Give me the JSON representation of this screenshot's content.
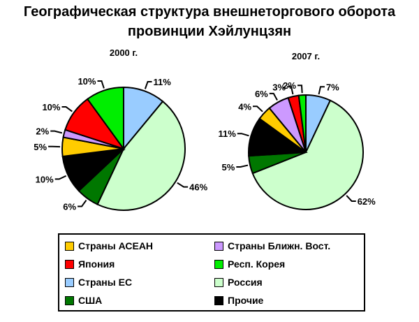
{
  "title_line1": "Географическая структура внешнеторгового оборота",
  "title_line2": "провинции Хэйлунцзян",
  "chart_data": [
    {
      "type": "pie",
      "title": "2000 г.",
      "categories": [
        "Страны ЕС",
        "Россия",
        "США",
        "Прочие",
        "Страны АСЕАН",
        "Страны Ближн. Вост.",
        "Япония",
        "Респ. Корея"
      ],
      "values": [
        11,
        46,
        6,
        10,
        5,
        2,
        10,
        10
      ],
      "labels": [
        "11%",
        "46%",
        "6%",
        "10%",
        "5%",
        "2%",
        "10%",
        "10%"
      ]
    },
    {
      "type": "pie",
      "title": "2007 г.",
      "categories": [
        "Страны ЕС",
        "Россия",
        "США",
        "Прочие",
        "Страны АСЕАН",
        "Страны Ближн. Вост.",
        "Япония",
        "Респ. Корея"
      ],
      "values": [
        7,
        62,
        5,
        11,
        4,
        6,
        3,
        2
      ],
      "labels": [
        "7%",
        "62%",
        "5%",
        "11%",
        "4%",
        "6%",
        "3%",
        "2%"
      ]
    }
  ],
  "colors": {
    "Страны ЕС": "#99ccff",
    "Россия": "#ccffcc",
    "США": "#007700",
    "Прочие": "#000000",
    "Страны АСЕАН": "#ffcc00",
    "Страны Ближн. Вост.": "#cc99ff",
    "Япония": "#ff0000",
    "Респ. Корея": "#00ee00"
  },
  "legend": [
    {
      "label": "Страны АСЕАН",
      "key": "Страны АСЕАН"
    },
    {
      "label": "Страны Ближн. Вост.",
      "key": "Страны Ближн. Вост."
    },
    {
      "label": "Япония",
      "key": "Япония"
    },
    {
      "label": "Респ. Корея",
      "key": "Респ. Корея"
    },
    {
      "label": "Страны ЕС",
      "key": "Страны ЕС"
    },
    {
      "label": "Россия",
      "key": "Россия"
    },
    {
      "label": "США",
      "key": "США"
    },
    {
      "label": "Прочие",
      "key": "Прочие"
    }
  ]
}
